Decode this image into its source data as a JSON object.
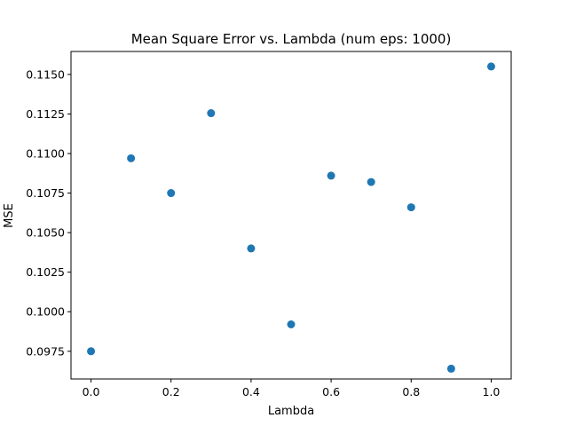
{
  "chart_data": {
    "type": "scatter",
    "title": "Mean Square Error vs. Lambda (num eps: 1000)",
    "xlabel": "Lambda",
    "ylabel": "MSE",
    "xlim": [
      -0.05,
      1.05
    ],
    "ylim": [
      0.09575,
      0.11645
    ],
    "xticks": [
      0.0,
      0.2,
      0.4,
      0.6,
      0.8,
      1.0
    ],
    "xtick_labels": [
      "0.0",
      "0.2",
      "0.4",
      "0.6",
      "0.8",
      "1.0"
    ],
    "yticks": [
      0.0975,
      0.1,
      0.1025,
      0.105,
      0.1075,
      0.11,
      0.1125,
      0.115
    ],
    "ytick_labels": [
      "0.0975",
      "0.1000",
      "0.1025",
      "0.1050",
      "0.1075",
      "0.1100",
      "0.1125",
      "0.1150"
    ],
    "grid": false,
    "marker_color": "#1f77b4",
    "x": [
      0.0,
      0.1,
      0.2,
      0.3,
      0.4,
      0.5,
      0.6,
      0.7,
      0.8,
      0.9,
      1.0
    ],
    "y": [
      0.0975,
      0.1097,
      0.1075,
      0.11255,
      0.104,
      0.0992,
      0.1086,
      0.1082,
      0.1066,
      0.0964,
      0.1155
    ]
  }
}
